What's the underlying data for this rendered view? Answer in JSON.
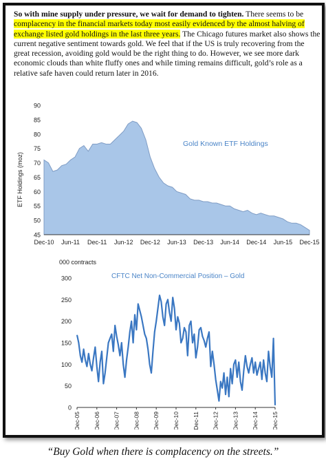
{
  "document": {
    "lead_bold": "So with mine supply under pressure, we wait for demand to tighten.",
    "text_1": " There seems to be ",
    "highlight": "complacency in the financial markets today most easily evidenced by the almost halving of exchange listed gold holdings in the last three years.",
    "text_2": " The Chicago futures market also shows the current negative sentiment towards gold. We feel that if the US is truly recovering from the great recession, avoiding gold would be the right thing to do. However, we see more dark economic clouds than white fluffy ones and while timing remains difficult, gold’s role as a relative safe haven could return later in 2016.",
    "caption": "“Buy Gold when there is complacency on the streets.”"
  },
  "colors": {
    "highlight": "#ffff00",
    "area_fill": "#a9c6e8",
    "area_edge": "#7f9cc4",
    "line": "#3a77c2",
    "chart_text": "#4a84c7"
  },
  "chart_data": [
    {
      "type": "area",
      "title": "Gold Known ETF Holdings",
      "ylabel": "ETF Holdings (moz)",
      "ylim": [
        45,
        90
      ],
      "yticks": [
        45,
        50,
        55,
        60,
        65,
        70,
        75,
        80,
        85,
        90
      ],
      "xlabels": [
        "Dec-10",
        "Jun-11",
        "Dec-11",
        "Jun-12",
        "Dec-12",
        "Jun-13",
        "Dec-13",
        "Jun-14",
        "Dec-14",
        "Jun-15",
        "Dec-15"
      ],
      "xlim": [
        0,
        60
      ],
      "series": [
        {
          "x": [
            0,
            1,
            2,
            3,
            4,
            5,
            6,
            7,
            8,
            9,
            10,
            11,
            12,
            13,
            14,
            15,
            16,
            17,
            18,
            19,
            20,
            21,
            22,
            23,
            24,
            25,
            26,
            27,
            28,
            29,
            30,
            31,
            32,
            33,
            34,
            35,
            36,
            37,
            38,
            39,
            40,
            41,
            42,
            43,
            44,
            45,
            46,
            47,
            48,
            49,
            50,
            51,
            52,
            53,
            54,
            55,
            56,
            57,
            58,
            59,
            60
          ],
          "values": [
            71,
            70,
            67,
            67.5,
            69,
            69.5,
            71,
            72,
            75,
            76,
            74,
            76.5,
            76.5,
            77,
            76.5,
            76.5,
            78,
            79.5,
            81,
            83.5,
            84.5,
            84,
            82,
            78,
            72,
            68,
            65,
            63,
            62,
            61.5,
            60,
            59.5,
            59,
            57.5,
            57,
            57,
            56.5,
            56.5,
            56,
            56,
            55.5,
            55,
            55,
            54,
            53.5,
            53,
            53.5,
            52.5,
            52,
            52.5,
            52,
            51.5,
            51.5,
            51,
            50.5,
            49.5,
            49,
            49,
            48.5,
            47.5,
            46.5
          ]
        }
      ]
    },
    {
      "type": "line",
      "title": "CFTC Net Non-Commercial Position – Gold",
      "ylabel": "000 contracts",
      "ylim": [
        0,
        300
      ],
      "yticks": [
        0,
        50,
        100,
        150,
        200,
        250,
        300
      ],
      "xlabels": [
        "Dec-05",
        "Dec-06",
        "Dec-07",
        "Dec-08",
        "Dec-09",
        "Dec-10",
        "Dec-11",
        "Dec-12",
        "Dec-13",
        "Dec-14",
        "Dec-15"
      ],
      "xlim": [
        0,
        120
      ],
      "series": [
        {
          "x": [
            0,
            1,
            2,
            3,
            4,
            5,
            6,
            7,
            8,
            9,
            10,
            11,
            12,
            13,
            14,
            15,
            16,
            17,
            18,
            19,
            20,
            21,
            22,
            23,
            24,
            25,
            26,
            27,
            28,
            29,
            30,
            31,
            32,
            33,
            34,
            35,
            36,
            37,
            38,
            39,
            40,
            41,
            42,
            43,
            44,
            45,
            46,
            47,
            48,
            49,
            50,
            51,
            52,
            53,
            54,
            55,
            56,
            57,
            58,
            59,
            60,
            61,
            62,
            63,
            64,
            65,
            66,
            67,
            68,
            69,
            70,
            71,
            72,
            73,
            74,
            75,
            76,
            77,
            78,
            79,
            80,
            81,
            82,
            83,
            84,
            85,
            86,
            87,
            88,
            89,
            90,
            91,
            92,
            93,
            94,
            95,
            96,
            97,
            98,
            99,
            100,
            101,
            102,
            103,
            104,
            105,
            106,
            107,
            108,
            109,
            110,
            111,
            112,
            113,
            114,
            115,
            116,
            117,
            118,
            119,
            120
          ],
          "values": [
            168,
            150,
            120,
            105,
            135,
            110,
            95,
            125,
            100,
            85,
            115,
            140,
            95,
            60,
            105,
            130,
            55,
            80,
            115,
            150,
            160,
            170,
            130,
            190,
            165,
            145,
            120,
            150,
            100,
            70,
            110,
            140,
            175,
            200,
            150,
            215,
            180,
            240,
            225,
            210,
            190,
            170,
            160,
            135,
            100,
            80,
            130,
            175,
            200,
            230,
            260,
            245,
            210,
            190,
            240,
            250,
            220,
            200,
            255,
            230,
            180,
            210,
            195,
            150,
            160,
            185,
            175,
            120,
            190,
            200,
            150,
            170,
            115,
            140,
            180,
            185,
            165,
            155,
            140,
            160,
            175,
            95,
            130,
            100,
            65,
            40,
            15,
            60,
            45,
            80,
            30,
            70,
            25,
            90,
            55,
            100,
            110,
            70,
            105,
            60,
            40,
            85,
            120,
            95,
            80,
            100,
            115,
            80,
            105,
            75,
            90,
            105,
            65,
            110,
            80,
            60,
            130,
            95,
            70,
            160,
            5
          ]
        }
      ]
    }
  ]
}
